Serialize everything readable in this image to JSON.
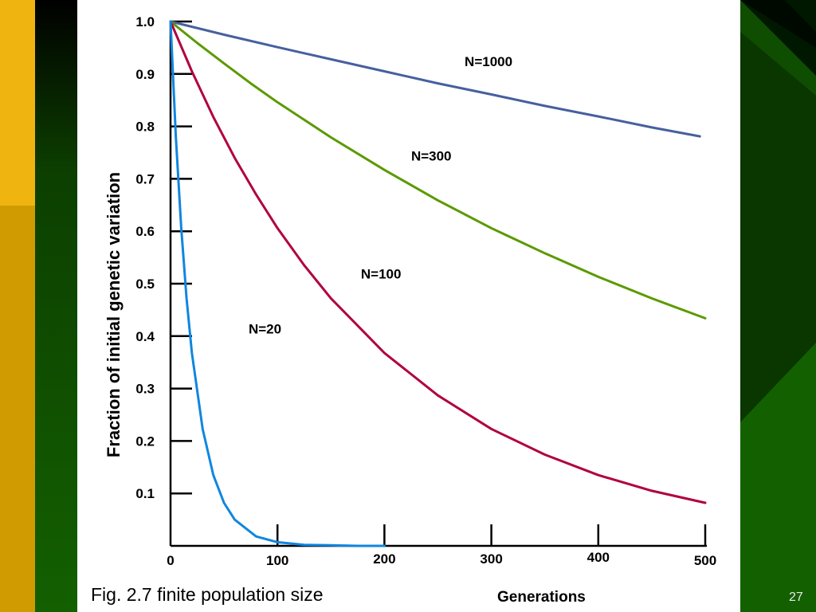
{
  "slide": {
    "caption": "Fig. 2.7 finite population size",
    "page_number": "27"
  },
  "colors": {
    "background_green": "#0f4d00",
    "sidebar_gold": "#f0b411",
    "sidebar_gold_dark": "#d09b00",
    "dark_green": "#002a00"
  },
  "chart_data": {
    "type": "line",
    "xlabel": "Generations",
    "ylabel": "Fraction of initial genetic variation",
    "xlim": [
      0,
      500
    ],
    "ylim": [
      0,
      1.0
    ],
    "x_ticks": [
      "0",
      "100",
      "200",
      "300",
      "400",
      "500"
    ],
    "y_ticks": [
      "0.1",
      "0.2",
      "0.3",
      "0.4",
      "0.5",
      "0.6",
      "0.7",
      "0.8",
      "0.9",
      "1.0"
    ],
    "grid": false,
    "series": [
      {
        "name": "N=1000",
        "color": "#46609e",
        "x": [
          0,
          50,
          100,
          150,
          200,
          250,
          300,
          350,
          400,
          450,
          495
        ],
        "y": [
          1.0,
          0.975,
          0.951,
          0.928,
          0.905,
          0.882,
          0.861,
          0.839,
          0.819,
          0.798,
          0.781
        ]
      },
      {
        "name": "N=300",
        "color": "#5b9a00",
        "x": [
          0,
          25,
          50,
          75,
          100,
          150,
          200,
          250,
          300,
          350,
          400,
          450,
          500
        ],
        "y": [
          1.0,
          0.959,
          0.92,
          0.882,
          0.846,
          0.779,
          0.717,
          0.659,
          0.606,
          0.558,
          0.513,
          0.472,
          0.434
        ]
      },
      {
        "name": "N=100",
        "color": "#b00040",
        "x": [
          0,
          20,
          40,
          60,
          80,
          100,
          125,
          150,
          200,
          250,
          300,
          350,
          400,
          450,
          500
        ],
        "y": [
          1.0,
          0.905,
          0.818,
          0.74,
          0.67,
          0.606,
          0.535,
          0.472,
          0.368,
          0.287,
          0.223,
          0.174,
          0.135,
          0.105,
          0.082
        ]
      },
      {
        "name": "N=20",
        "color": "#0f86df",
        "x": [
          0,
          5,
          10,
          15,
          20,
          30,
          40,
          50,
          60,
          80,
          100,
          125,
          150,
          175,
          200
        ],
        "y": [
          1.0,
          0.779,
          0.607,
          0.472,
          0.368,
          0.223,
          0.135,
          0.082,
          0.05,
          0.018,
          0.007,
          0.002,
          0.001,
          0.0,
          0.0
        ]
      }
    ],
    "annotations": [
      {
        "text": "N=1000",
        "x": 275,
        "y": 0.915
      },
      {
        "text": "N=300",
        "x": 225,
        "y": 0.735
      },
      {
        "text": "N=100",
        "x": 178,
        "y": 0.51
      },
      {
        "text": "N=20",
        "x": 73,
        "y": 0.405
      }
    ]
  }
}
